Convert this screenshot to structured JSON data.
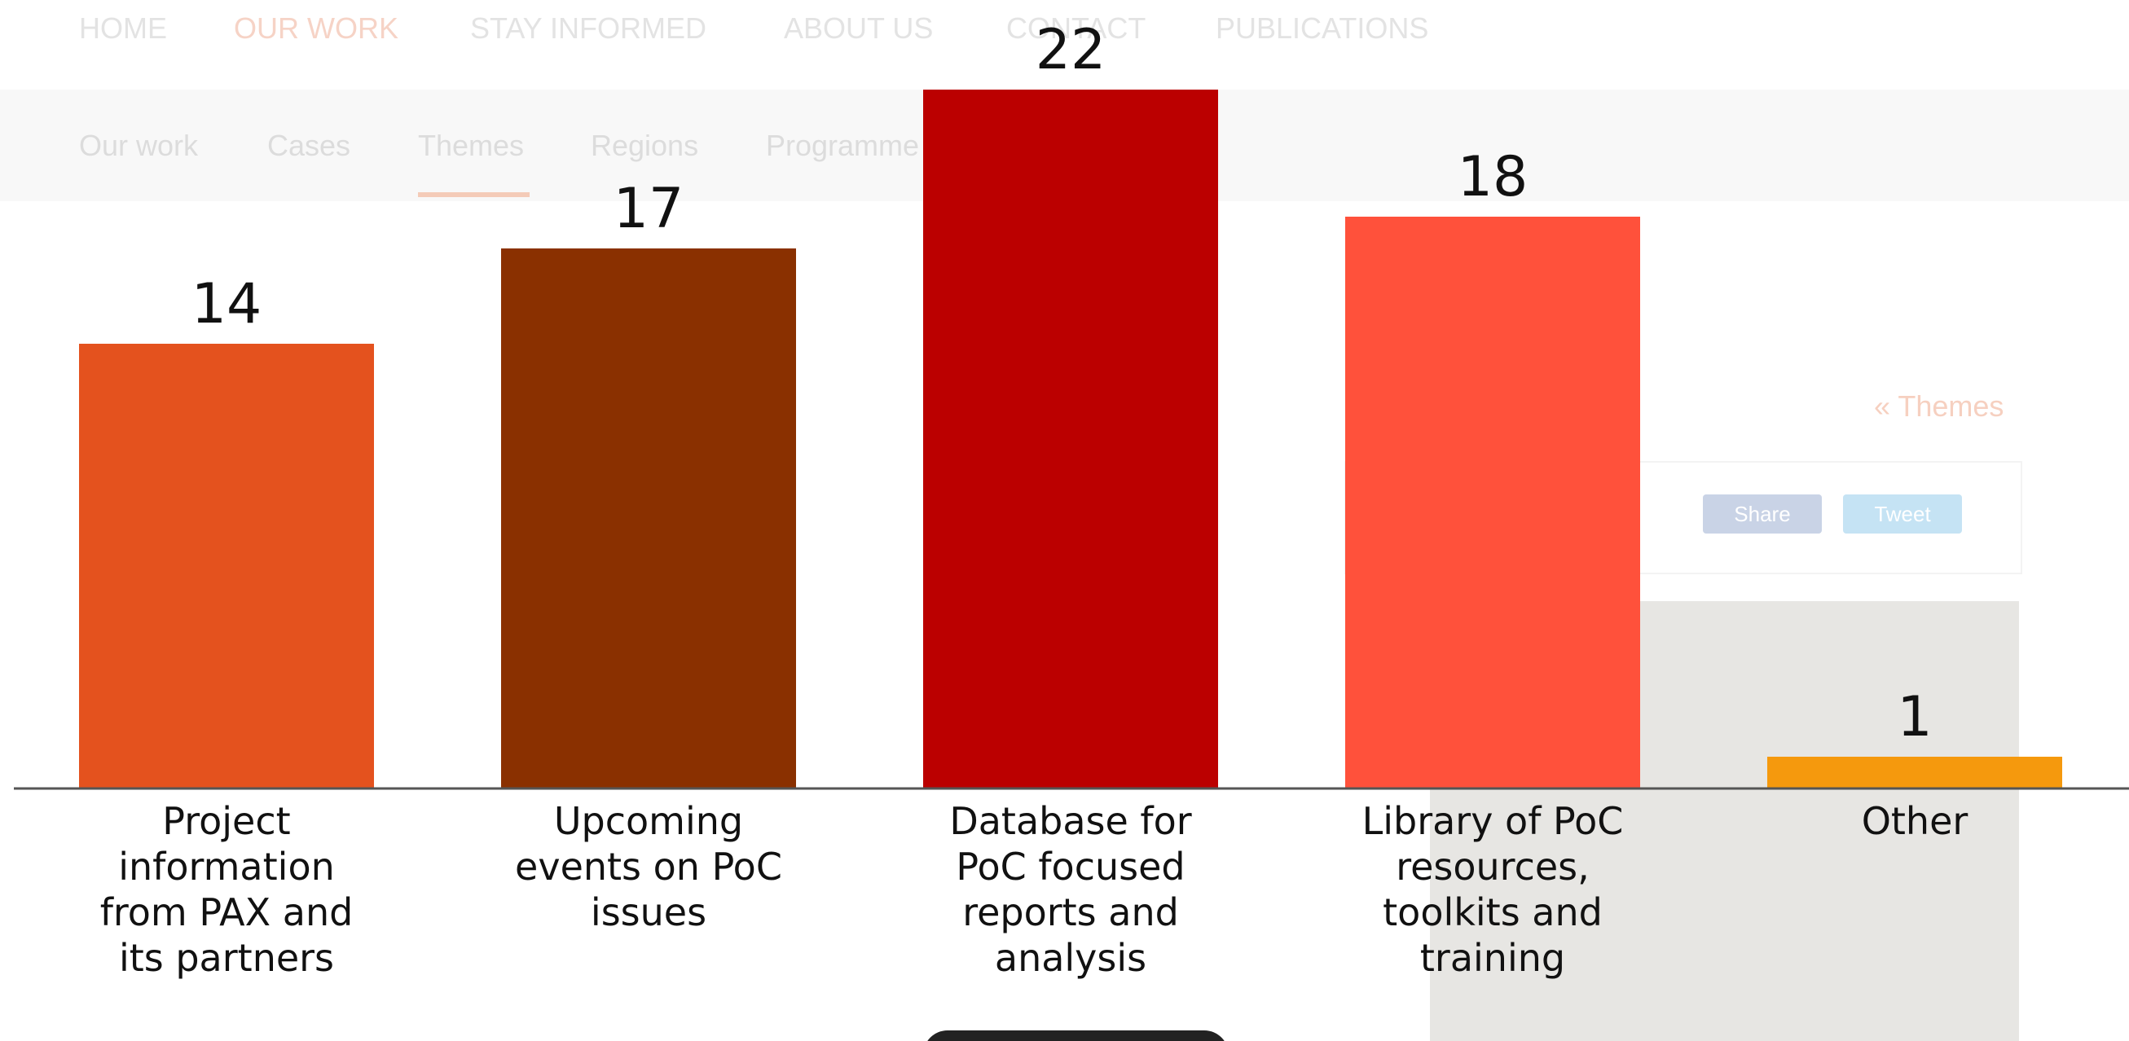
{
  "background": {
    "nav": [
      "HOME",
      "OUR WORK",
      "STAY INFORMED",
      "ABOUT US",
      "CONTACT",
      "PUBLICATIONS"
    ],
    "subnav": [
      "Our work",
      "Cases",
      "Themes",
      "Regions",
      "Programme"
    ],
    "back_link": "« Themes",
    "share": "Share",
    "tweet": "Tweet"
  },
  "chart_data": {
    "type": "bar",
    "categories": [
      "Project information from PAX and its partners",
      "Upcoming events on PoC issues",
      "Database for PoC focused reports and analysis",
      "Library of PoC resources, toolkits and training",
      "Other"
    ],
    "values": [
      14,
      17,
      22,
      18,
      1
    ],
    "colors": [
      "#e4521e",
      "#8a3000",
      "#bb0000",
      "#ff513b",
      "#f5990d"
    ]
  }
}
